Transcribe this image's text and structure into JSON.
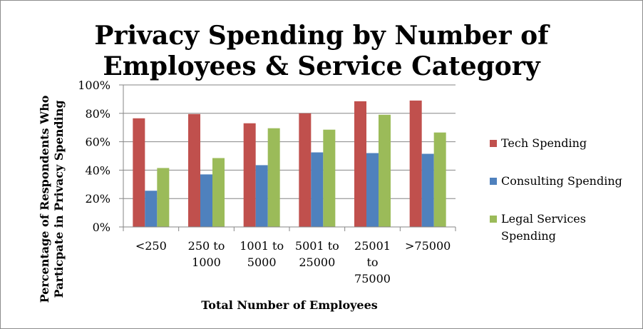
{
  "chart_data": {
    "type": "bar",
    "title_lines": [
      "Privacy Spending by Number of",
      "Employees & Service Category"
    ],
    "xlabel": "Total Number of Employees",
    "ylabel_lines": [
      "Percentage of Respondents Who",
      "Particpate in Privacy Spending"
    ],
    "ylim": [
      0,
      100
    ],
    "y_ticks": [
      "0%",
      "20%",
      "40%",
      "60%",
      "80%",
      "100%"
    ],
    "grid": true,
    "legend_position": "right",
    "categories": [
      "<250",
      "250 to 1000",
      "1001 to 5000",
      "5001 to 25000",
      "25001 to 75000",
      ">75000"
    ],
    "category_label_lines": [
      [
        "<250"
      ],
      [
        "250 to",
        "1000"
      ],
      [
        "1001 to",
        "5000"
      ],
      [
        "5001 to",
        "25000"
      ],
      [
        "25001",
        "to",
        "75000"
      ],
      [
        ">75000"
      ]
    ],
    "series": [
      {
        "name": "Tech Spending",
        "name_lines": [
          "Tech Spending"
        ],
        "color": "#c0504d",
        "values": [
          76.5,
          79.5,
          73,
          80,
          88.5,
          89
        ]
      },
      {
        "name": "Consulting Spending",
        "name_lines": [
          "Consulting Spending"
        ],
        "color": "#4f81bd",
        "values": [
          25.5,
          37,
          43.5,
          52.5,
          52,
          51.5
        ]
      },
      {
        "name": "Legal Services Spending",
        "name_lines": [
          "Legal Services",
          "Spending"
        ],
        "color": "#9bbb59",
        "values": [
          41.5,
          48.5,
          69.5,
          68.5,
          79,
          66.5
        ]
      }
    ]
  }
}
